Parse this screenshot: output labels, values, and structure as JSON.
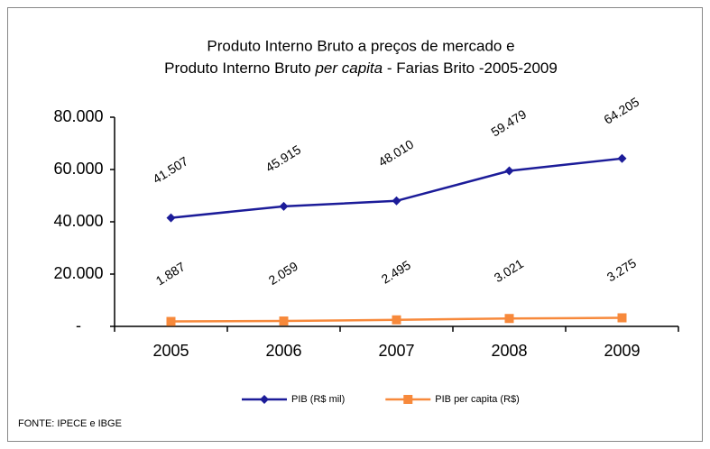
{
  "chart_data": {
    "type": "line",
    "title": {
      "line1": "Produto Interno Bruto a preços de mercado  e",
      "line2": [
        "Produto Interno Bruto ",
        "per capita",
        " - Farias Brito -2005-2009"
      ]
    },
    "categories": [
      "2005",
      "2006",
      "2007",
      "2008",
      "2009"
    ],
    "series": [
      {
        "name": "PIB (R$ mil)",
        "color": "#1c1c99",
        "marker": "diamond",
        "values": [
          41507,
          45915,
          48010,
          59479,
          64205
        ],
        "value_labels": [
          "41.507",
          "45.915",
          "48.010",
          "59.479",
          "64.205"
        ]
      },
      {
        "name": "PIB per capita (R$)",
        "color": "#f7893b",
        "marker": "square",
        "values": [
          1887,
          2059,
          2495,
          3021,
          3275
        ],
        "value_labels": [
          "1.887",
          "2.059",
          "2.495",
          "3.021",
          "3.275"
        ]
      }
    ],
    "ylim": [
      0,
      80000
    ],
    "yticks": [
      {
        "value": 0,
        "label": "-"
      },
      {
        "value": 20000,
        "label": "20.000"
      },
      {
        "value": 40000,
        "label": "40.000"
      },
      {
        "value": 60000,
        "label": "60.000"
      },
      {
        "value": 80000,
        "label": "80.000"
      }
    ],
    "legend": "bottom",
    "source": "FONTE: IPECE e IBGE"
  }
}
